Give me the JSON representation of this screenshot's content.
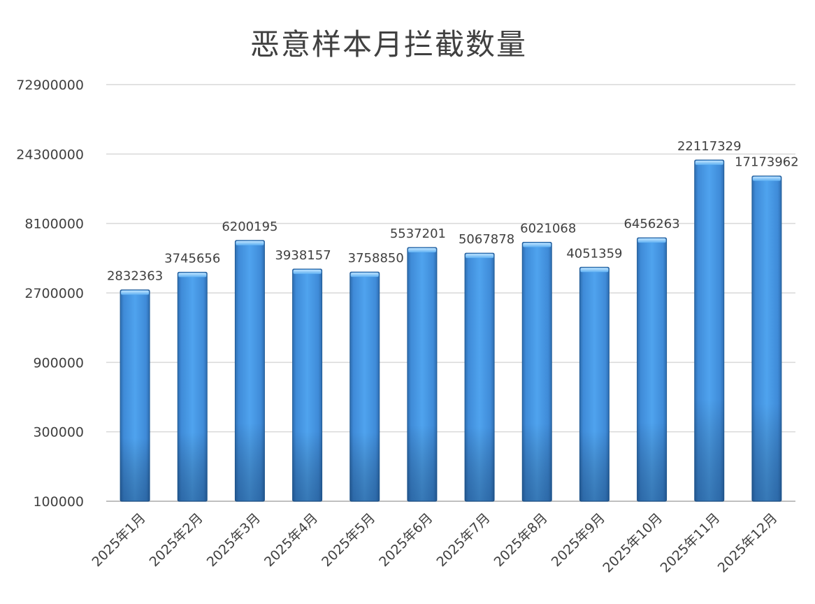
{
  "chart_data": {
    "type": "bar",
    "title": "恶意样本月拦截数量",
    "xlabel": "",
    "ylabel": "",
    "y_scale": "log",
    "ylim": [
      100000,
      72900000
    ],
    "y_ticks": [
      "100000",
      "300000",
      "900000",
      "2700000",
      "8100000",
      "24300000",
      "72900000"
    ],
    "y_tick_values": [
      100000,
      300000,
      900000,
      2700000,
      8100000,
      24300000,
      72900000
    ],
    "grid": true,
    "categories": [
      "2025年1月",
      "2025年2月",
      "2025年3月",
      "2025年4月",
      "2025年5月",
      "2025年6月",
      "2025年7月",
      "2025年8月",
      "2025年9月",
      "2025年10月",
      "2025年11月",
      "2025年12月"
    ],
    "values": [
      2832363,
      3745656,
      6200195,
      3938157,
      3758850,
      5537201,
      5067878,
      6021068,
      4051359,
      6456263,
      22117329,
      17173962
    ],
    "bar_color": "#4A98E0",
    "bar_edge_color": "#1F5A96",
    "grid_color": "#D9D9D9"
  }
}
